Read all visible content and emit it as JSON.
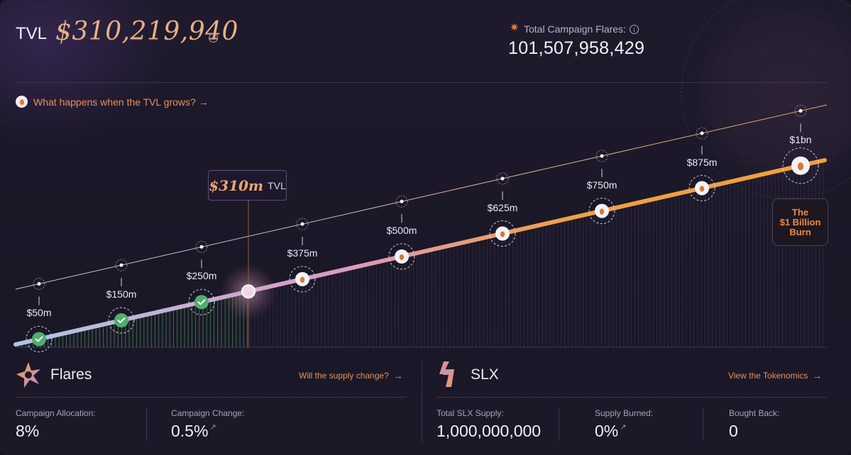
{
  "header": {
    "tvl_label": "TVL",
    "tvl_value": "$310,219,940",
    "info_glyph": "i",
    "flares_title": "Total Campaign Flares:",
    "flares_total": "101,507,958,429",
    "flares_icon": "star-icon",
    "grows_link": "What happens when the TVL grows? →"
  },
  "chart": {
    "current_tvl_value": "$310m",
    "current_tvl_unit": "TVL",
    "current_tvl_millions": 310,
    "milestones": [
      {
        "label": "$50m",
        "value_millions": 50,
        "status": "completed"
      },
      {
        "label": "$150m",
        "value_millions": 150,
        "status": "completed"
      },
      {
        "label": "$250m",
        "value_millions": 250,
        "status": "completed"
      },
      {
        "label": "$375m",
        "value_millions": 375,
        "status": "locked"
      },
      {
        "label": "$500m",
        "value_millions": 500,
        "status": "locked"
      },
      {
        "label": "$625m",
        "value_millions": 625,
        "status": "locked"
      },
      {
        "label": "$750m",
        "value_millions": 750,
        "status": "locked"
      },
      {
        "label": "$875m",
        "value_millions": 875,
        "status": "locked"
      },
      {
        "label": "$1bn",
        "value_millions": 1000,
        "status": "locked"
      }
    ],
    "burn_label_line1": "The",
    "burn_label_line2": "$1 Billion",
    "burn_label_line3": "Burn",
    "colors": {
      "start": "#aec7e6",
      "mid": "#d99ac2",
      "end": "#f0a03e",
      "check": "#4fae6c"
    }
  },
  "flares_section": {
    "title": "Flares",
    "link": "Will the supply change?",
    "stats": [
      {
        "label": "Campaign Allocation:",
        "value": "8%"
      },
      {
        "label": "Campaign Change:",
        "value": "0.5%",
        "trend": "↗"
      }
    ]
  },
  "slx_section": {
    "title": "SLX",
    "link": "View the Tokenomics",
    "stats": [
      {
        "label": "Total SLX Supply:",
        "value": "1,000,000,000"
      },
      {
        "label": "Supply Burned:",
        "value": "0%",
        "trend": "↗"
      },
      {
        "label": "Bought Back:",
        "value": "0"
      }
    ]
  }
}
